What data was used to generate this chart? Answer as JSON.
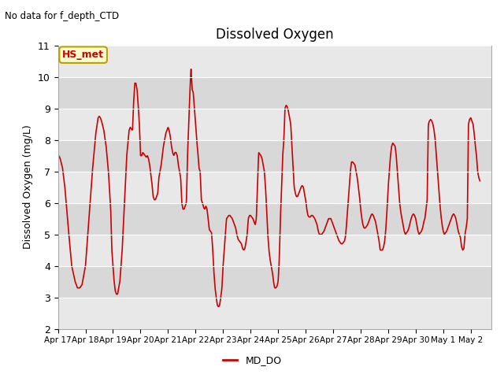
{
  "title": "Dissolved Oxygen",
  "ylabel": "Dissolved Oxygen (mg/L)",
  "no_data_text": "No data for f_depth_CTD",
  "hs_met_label": "HS_met",
  "legend_label": "MD_DO",
  "ylim": [
    2.0,
    11.0
  ],
  "yticks": [
    2.0,
    3.0,
    4.0,
    5.0,
    6.0,
    7.0,
    8.0,
    9.0,
    10.0,
    11.0
  ],
  "line_color": "#cc0000",
  "line_width": 1.2,
  "plot_bg_color": "#e8e8e8",
  "x_tick_labels": [
    "Apr 17",
    "Apr 18",
    "Apr 19",
    "Apr 20",
    "Apr 21",
    "Apr 22",
    "Apr 23",
    "Apr 24",
    "Apr 25",
    "Apr 26",
    "Apr 27",
    "Apr 28",
    "Apr 29",
    "Apr 30",
    "May 1",
    "May 2"
  ],
  "hs_met_box_color": "#ffffcc",
  "hs_met_border_color": "#b8a000",
  "hs_met_text_color": "#cc0000",
  "band_colors": [
    "#e8e8e8",
    "#d8d8d8"
  ],
  "key_points": [
    [
      0,
      7.55
    ],
    [
      2,
      7.4
    ],
    [
      4,
      7.1
    ],
    [
      6,
      6.5
    ],
    [
      9,
      5.2
    ],
    [
      12,
      4.0
    ],
    [
      15,
      3.5
    ],
    [
      17,
      3.3
    ],
    [
      19,
      3.3
    ],
    [
      21,
      3.4
    ],
    [
      24,
      4.0
    ],
    [
      27,
      5.5
    ],
    [
      30,
      7.0
    ],
    [
      33,
      8.2
    ],
    [
      35,
      8.7
    ],
    [
      36,
      8.75
    ],
    [
      37,
      8.7
    ],
    [
      38,
      8.6
    ],
    [
      40,
      8.3
    ],
    [
      42,
      7.8
    ],
    [
      44,
      7.0
    ],
    [
      46,
      5.8
    ],
    [
      47,
      4.5
    ],
    [
      48,
      4.0
    ],
    [
      49,
      3.5
    ],
    [
      50,
      3.2
    ],
    [
      51,
      3.1
    ],
    [
      52,
      3.1
    ],
    [
      54,
      3.5
    ],
    [
      56,
      4.5
    ],
    [
      58,
      6.0
    ],
    [
      60,
      7.5
    ],
    [
      62,
      8.3
    ],
    [
      63,
      8.4
    ],
    [
      64,
      8.35
    ],
    [
      65,
      8.3
    ],
    [
      66,
      9.2
    ],
    [
      67,
      9.8
    ],
    [
      68,
      9.8
    ],
    [
      69,
      9.6
    ],
    [
      70,
      9.1
    ],
    [
      71,
      8.5
    ],
    [
      72,
      7.5
    ],
    [
      73,
      7.5
    ],
    [
      74,
      7.6
    ],
    [
      75,
      7.55
    ],
    [
      76,
      7.5
    ],
    [
      77,
      7.45
    ],
    [
      78,
      7.5
    ],
    [
      79,
      7.4
    ],
    [
      80,
      7.2
    ],
    [
      81,
      6.9
    ],
    [
      82,
      6.6
    ],
    [
      83,
      6.2
    ],
    [
      84,
      6.1
    ],
    [
      85,
      6.1
    ],
    [
      86,
      6.2
    ],
    [
      87,
      6.3
    ],
    [
      88,
      6.8
    ],
    [
      89,
      7.0
    ],
    [
      90,
      7.2
    ],
    [
      91,
      7.5
    ],
    [
      92,
      7.8
    ],
    [
      93,
      8.0
    ],
    [
      94,
      8.2
    ],
    [
      95,
      8.3
    ],
    [
      96,
      8.4
    ],
    [
      97,
      8.3
    ],
    [
      98,
      8.1
    ],
    [
      99,
      7.8
    ],
    [
      100,
      7.6
    ],
    [
      101,
      7.5
    ],
    [
      102,
      7.6
    ],
    [
      103,
      7.6
    ],
    [
      104,
      7.5
    ],
    [
      105,
      7.2
    ],
    [
      106,
      7.0
    ],
    [
      107,
      6.8
    ],
    [
      108,
      6.0
    ],
    [
      109,
      5.8
    ],
    [
      110,
      5.8
    ],
    [
      111,
      5.9
    ],
    [
      112,
      6.0
    ],
    [
      113,
      7.5
    ],
    [
      114,
      8.5
    ],
    [
      115,
      9.45
    ],
    [
      116,
      10.3
    ],
    [
      117,
      9.6
    ],
    [
      118,
      9.5
    ],
    [
      119,
      9.0
    ],
    [
      120,
      8.5
    ],
    [
      121,
      8.0
    ],
    [
      122,
      7.6
    ],
    [
      123,
      7.1
    ],
    [
      124,
      7.0
    ],
    [
      125,
      6.1
    ],
    [
      126,
      6.0
    ],
    [
      127,
      5.85
    ],
    [
      128,
      5.8
    ],
    [
      129,
      5.9
    ],
    [
      130,
      5.8
    ],
    [
      131,
      5.5
    ],
    [
      132,
      5.15
    ],
    [
      133,
      5.1
    ],
    [
      134,
      5.05
    ],
    [
      135,
      4.5
    ],
    [
      136,
      3.8
    ],
    [
      137,
      3.3
    ],
    [
      138,
      3.0
    ],
    [
      139,
      2.75
    ],
    [
      140,
      2.7
    ],
    [
      141,
      2.75
    ],
    [
      142,
      3.0
    ],
    [
      143,
      3.3
    ],
    [
      144,
      4.0
    ],
    [
      145,
      4.5
    ],
    [
      146,
      5.0
    ],
    [
      147,
      5.5
    ],
    [
      148,
      5.55
    ],
    [
      149,
      5.6
    ],
    [
      150,
      5.6
    ],
    [
      151,
      5.55
    ],
    [
      152,
      5.5
    ],
    [
      153,
      5.4
    ],
    [
      154,
      5.3
    ],
    [
      155,
      5.2
    ],
    [
      156,
      5.0
    ],
    [
      157,
      4.85
    ],
    [
      158,
      4.8
    ],
    [
      159,
      4.75
    ],
    [
      160,
      4.7
    ],
    [
      161,
      4.55
    ],
    [
      162,
      4.5
    ],
    [
      163,
      4.55
    ],
    [
      164,
      4.75
    ],
    [
      165,
      5.0
    ],
    [
      166,
      5.5
    ],
    [
      167,
      5.6
    ],
    [
      168,
      5.6
    ],
    [
      169,
      5.55
    ],
    [
      170,
      5.5
    ],
    [
      171,
      5.4
    ],
    [
      172,
      5.3
    ],
    [
      173,
      5.5
    ],
    [
      174,
      6.5
    ],
    [
      175,
      7.6
    ],
    [
      176,
      7.55
    ],
    [
      177,
      7.5
    ],
    [
      178,
      7.4
    ],
    [
      179,
      7.2
    ],
    [
      180,
      7.0
    ],
    [
      181,
      6.5
    ],
    [
      182,
      5.8
    ],
    [
      183,
      5.0
    ],
    [
      184,
      4.5
    ],
    [
      185,
      4.2
    ],
    [
      186,
      4.0
    ],
    [
      187,
      3.8
    ],
    [
      188,
      3.5
    ],
    [
      189,
      3.3
    ],
    [
      190,
      3.3
    ],
    [
      191,
      3.35
    ],
    [
      192,
      3.5
    ],
    [
      193,
      4.2
    ],
    [
      194,
      5.5
    ],
    [
      195,
      6.5
    ],
    [
      196,
      7.5
    ],
    [
      197,
      8.0
    ],
    [
      198,
      9.0
    ],
    [
      199,
      9.1
    ],
    [
      200,
      9.05
    ],
    [
      201,
      8.9
    ],
    [
      202,
      8.7
    ],
    [
      203,
      8.5
    ],
    [
      204,
      7.8
    ],
    [
      205,
      7.2
    ],
    [
      206,
      6.5
    ],
    [
      207,
      6.3
    ],
    [
      208,
      6.2
    ],
    [
      209,
      6.2
    ],
    [
      210,
      6.3
    ],
    [
      211,
      6.4
    ],
    [
      212,
      6.5
    ],
    [
      213,
      6.55
    ],
    [
      214,
      6.5
    ],
    [
      215,
      6.3
    ],
    [
      216,
      6.1
    ],
    [
      217,
      5.8
    ],
    [
      218,
      5.6
    ],
    [
      219,
      5.55
    ],
    [
      220,
      5.55
    ],
    [
      221,
      5.6
    ],
    [
      222,
      5.6
    ],
    [
      223,
      5.55
    ],
    [
      224,
      5.5
    ],
    [
      225,
      5.4
    ],
    [
      226,
      5.3
    ],
    [
      227,
      5.1
    ],
    [
      228,
      5.0
    ],
    [
      229,
      5.0
    ],
    [
      230,
      5.0
    ],
    [
      231,
      5.05
    ],
    [
      232,
      5.1
    ],
    [
      233,
      5.2
    ],
    [
      234,
      5.3
    ],
    [
      235,
      5.4
    ],
    [
      236,
      5.5
    ],
    [
      237,
      5.5
    ],
    [
      238,
      5.5
    ],
    [
      239,
      5.4
    ],
    [
      240,
      5.3
    ],
    [
      241,
      5.2
    ],
    [
      242,
      5.1
    ],
    [
      243,
      5.0
    ],
    [
      244,
      4.9
    ],
    [
      245,
      4.8
    ],
    [
      246,
      4.75
    ],
    [
      247,
      4.7
    ],
    [
      248,
      4.7
    ],
    [
      249,
      4.75
    ],
    [
      250,
      4.8
    ],
    [
      251,
      5.0
    ],
    [
      252,
      5.5
    ],
    [
      253,
      6.0
    ],
    [
      254,
      6.5
    ],
    [
      255,
      7.0
    ],
    [
      256,
      7.3
    ],
    [
      257,
      7.3
    ],
    [
      258,
      7.25
    ],
    [
      259,
      7.2
    ],
    [
      260,
      7.0
    ],
    [
      261,
      6.8
    ],
    [
      262,
      6.5
    ],
    [
      263,
      6.2
    ],
    [
      264,
      5.8
    ],
    [
      265,
      5.5
    ],
    [
      266,
      5.3
    ],
    [
      267,
      5.2
    ],
    [
      268,
      5.2
    ],
    [
      269,
      5.25
    ],
    [
      270,
      5.3
    ],
    [
      271,
      5.4
    ],
    [
      272,
      5.5
    ],
    [
      273,
      5.6
    ],
    [
      274,
      5.65
    ],
    [
      275,
      5.6
    ],
    [
      276,
      5.5
    ],
    [
      277,
      5.4
    ],
    [
      278,
      5.2
    ],
    [
      279,
      5.0
    ],
    [
      280,
      4.8
    ],
    [
      281,
      4.5
    ],
    [
      282,
      4.5
    ],
    [
      283,
      4.5
    ],
    [
      284,
      4.6
    ],
    [
      285,
      4.8
    ],
    [
      286,
      5.2
    ],
    [
      287,
      5.8
    ],
    [
      288,
      6.5
    ],
    [
      289,
      7.0
    ],
    [
      290,
      7.5
    ],
    [
      291,
      7.8
    ],
    [
      292,
      7.9
    ],
    [
      293,
      7.85
    ],
    [
      294,
      7.8
    ],
    [
      295,
      7.5
    ],
    [
      296,
      7.0
    ],
    [
      297,
      6.5
    ],
    [
      298,
      6.0
    ],
    [
      299,
      5.7
    ],
    [
      300,
      5.5
    ],
    [
      301,
      5.3
    ],
    [
      302,
      5.1
    ],
    [
      303,
      5.0
    ],
    [
      304,
      5.05
    ],
    [
      305,
      5.1
    ],
    [
      306,
      5.2
    ],
    [
      307,
      5.35
    ],
    [
      308,
      5.5
    ],
    [
      309,
      5.6
    ],
    [
      310,
      5.65
    ],
    [
      311,
      5.6
    ],
    [
      312,
      5.5
    ],
    [
      313,
      5.3
    ],
    [
      314,
      5.1
    ],
    [
      315,
      5.0
    ],
    [
      316,
      5.05
    ],
    [
      317,
      5.1
    ],
    [
      318,
      5.2
    ],
    [
      319,
      5.4
    ],
    [
      320,
      5.5
    ],
    [
      321,
      5.8
    ],
    [
      322,
      6.1
    ],
    [
      323,
      8.5
    ],
    [
      324,
      8.6
    ],
    [
      325,
      8.65
    ],
    [
      326,
      8.6
    ],
    [
      327,
      8.5
    ],
    [
      328,
      8.3
    ],
    [
      329,
      8.0
    ],
    [
      330,
      7.5
    ],
    [
      331,
      7.0
    ],
    [
      332,
      6.5
    ],
    [
      333,
      6.0
    ],
    [
      334,
      5.6
    ],
    [
      335,
      5.3
    ],
    [
      336,
      5.1
    ],
    [
      337,
      5.0
    ],
    [
      338,
      5.05
    ],
    [
      339,
      5.1
    ],
    [
      340,
      5.2
    ],
    [
      341,
      5.3
    ],
    [
      342,
      5.4
    ],
    [
      343,
      5.5
    ],
    [
      344,
      5.6
    ],
    [
      345,
      5.65
    ],
    [
      346,
      5.6
    ],
    [
      347,
      5.5
    ],
    [
      348,
      5.3
    ],
    [
      349,
      5.1
    ],
    [
      350,
      5.0
    ],
    [
      351,
      4.9
    ],
    [
      352,
      4.6
    ],
    [
      353,
      4.5
    ],
    [
      354,
      4.55
    ],
    [
      355,
      5.0
    ],
    [
      356,
      5.2
    ],
    [
      357,
      5.5
    ],
    [
      358,
      8.5
    ],
    [
      359,
      8.65
    ],
    [
      360,
      8.7
    ],
    [
      361,
      8.6
    ],
    [
      362,
      8.5
    ],
    [
      363,
      8.2
    ],
    [
      364,
      7.8
    ],
    [
      365,
      7.5
    ],
    [
      366,
      7.0
    ],
    [
      367,
      6.8
    ],
    [
      368,
      6.7
    ]
  ]
}
